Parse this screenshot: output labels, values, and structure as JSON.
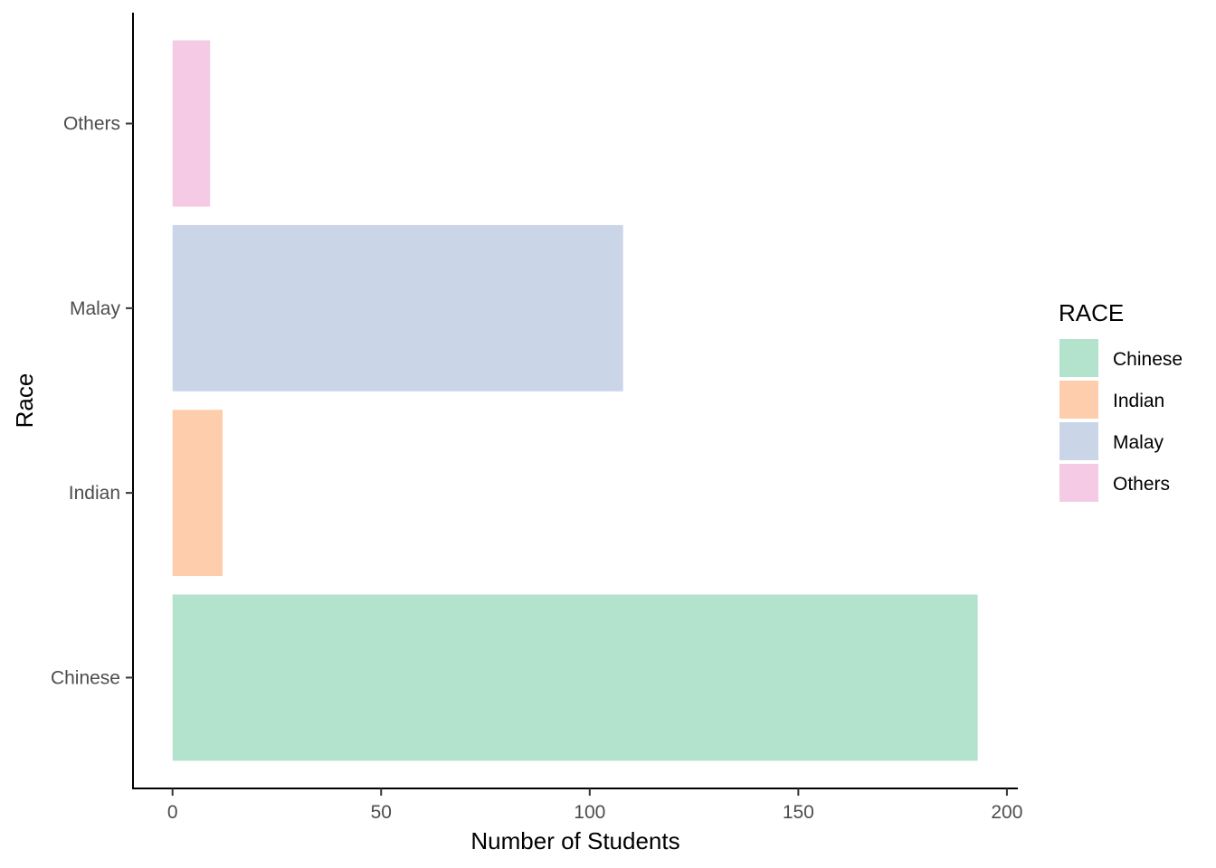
{
  "chart_data": {
    "type": "bar",
    "orientation": "horizontal",
    "categories": [
      "Chinese",
      "Indian",
      "Malay",
      "Others"
    ],
    "values": [
      193,
      12,
      108,
      9
    ],
    "colors": {
      "Chinese": "#B3E2CD",
      "Indian": "#FDCDAC",
      "Malay": "#CBD5E8",
      "Others": "#F4CAE4"
    },
    "xlabel": "Number of Students",
    "ylabel": "Race",
    "xlim": [
      0,
      200
    ],
    "xticks": [
      0,
      50,
      100,
      150,
      200
    ],
    "grid": false,
    "legend": {
      "title": "RACE",
      "position": "right",
      "entries": [
        "Chinese",
        "Indian",
        "Malay",
        "Others"
      ]
    }
  }
}
